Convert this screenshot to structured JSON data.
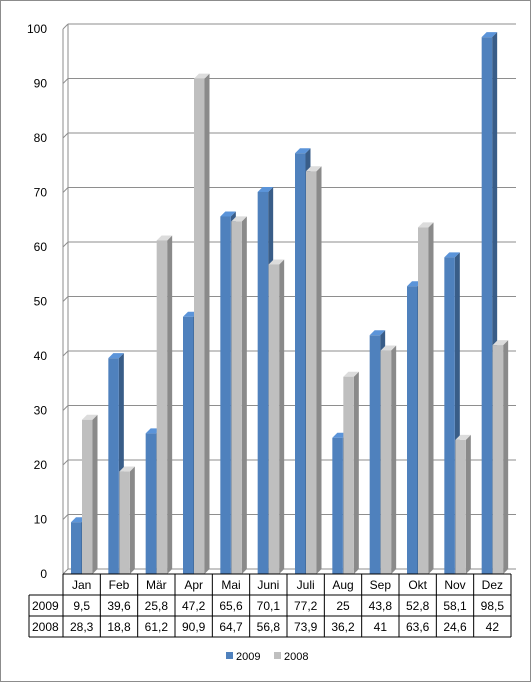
{
  "chart_data": {
    "type": "bar",
    "title": "",
    "xlabel": "",
    "ylabel": "",
    "ylim": [
      0,
      100
    ],
    "ytick_step": 10,
    "grid": true,
    "legend_position": "bottom",
    "categories": [
      "Jan",
      "Feb",
      "Mär",
      "Apr",
      "Mai",
      "Juni",
      "Juli",
      "Aug",
      "Sep",
      "Okt",
      "Nov",
      "Dez"
    ],
    "series": [
      {
        "name": "2009",
        "color": "#4f81bd",
        "values": [
          9.5,
          39.6,
          25.8,
          47.2,
          65.6,
          70.1,
          77.2,
          25,
          43.8,
          52.8,
          58.1,
          98.5
        ],
        "labels": [
          "9,5",
          "39,6",
          "25,8",
          "47,2",
          "65,6",
          "70,1",
          "77,2",
          "25",
          "43,8",
          "52,8",
          "58,1",
          "98,5"
        ]
      },
      {
        "name": "2008",
        "color": "#bfbfbf",
        "values": [
          28.3,
          18.8,
          61.2,
          90.9,
          64.7,
          56.8,
          73.9,
          36.2,
          41,
          63.6,
          24.6,
          42
        ],
        "labels": [
          "28,3",
          "18,8",
          "61,2",
          "90,9",
          "64,7",
          "56,8",
          "73,9",
          "36,2",
          "41",
          "63,6",
          "24,6",
          "42"
        ]
      }
    ]
  }
}
